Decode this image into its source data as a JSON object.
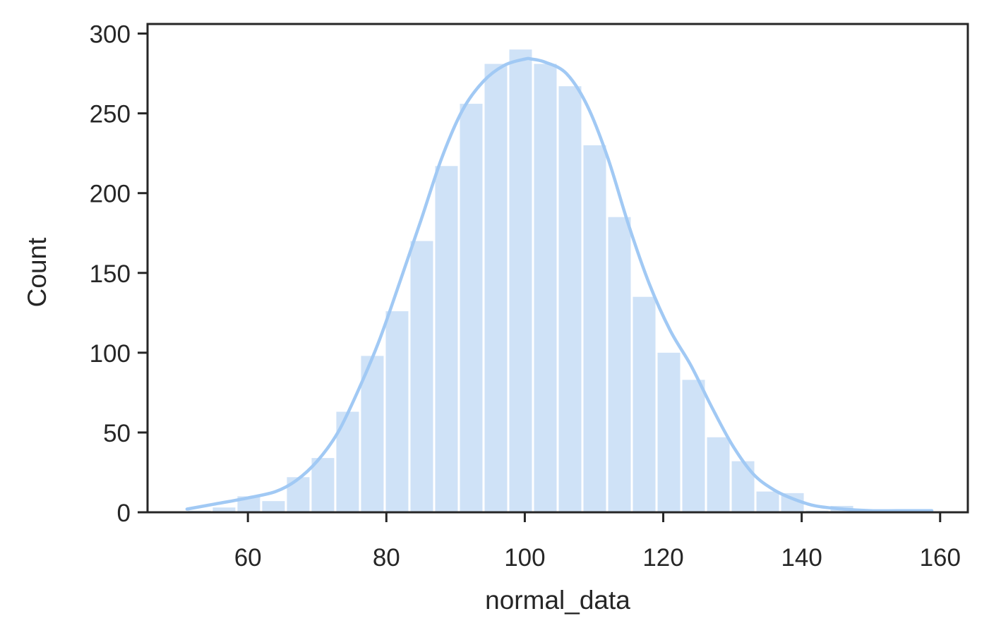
{
  "chart_data": {
    "type": "bar",
    "subtype": "histogram_with_kde",
    "title": "",
    "xlabel": "normal_data",
    "ylabel": "Count",
    "xlim": [
      45.5,
      164
    ],
    "ylim": [
      0,
      306
    ],
    "xticks": [
      60,
      80,
      100,
      120,
      140,
      160
    ],
    "yticks": [
      0,
      50,
      100,
      150,
      200,
      250,
      300
    ],
    "grid": false,
    "legend": null,
    "bar_color": "#cfe2f7",
    "kde_color": "#a1c9f4",
    "axis_color": "#262626",
    "bin_start": 51.2,
    "bin_width": 3.57,
    "categories": [
      "51.2-54.8",
      "54.8-58.3",
      "58.3-61.9",
      "61.9-65.5",
      "65.5-69.1",
      "69.1-72.6",
      "72.6-76.2",
      "76.2-79.8",
      "79.8-83.3",
      "83.3-86.9",
      "86.9-90.5",
      "90.5-94.1",
      "94.1-97.6",
      "97.6-101.2",
      "101.2-104.8",
      "104.8-108.3",
      "108.3-111.9",
      "111.9-115.5",
      "115.5-119.1",
      "119.1-122.6",
      "122.6-126.2",
      "126.2-129.8",
      "129.8-133.3",
      "133.3-136.9",
      "136.9-140.5",
      "140.5-144.1",
      "144.1-147.6",
      "147.6-151.2",
      "151.2-154.8",
      "154.8-158.3"
    ],
    "values": [
      1,
      3,
      10,
      7,
      22,
      34,
      63,
      98,
      126,
      170,
      217,
      256,
      281,
      290,
      281,
      267,
      230,
      185,
      135,
      100,
      83,
      47,
      32,
      13,
      12,
      1,
      4,
      1,
      0,
      1
    ],
    "kde": {
      "x": [
        51.2,
        55,
        60,
        64,
        67,
        70,
        73,
        76,
        79,
        82,
        85,
        88,
        91,
        94,
        97,
        100,
        101,
        103,
        106,
        109,
        112,
        115,
        118,
        121,
        124,
        127,
        130,
        133,
        136,
        139,
        142,
        146,
        150,
        154,
        158.8
      ],
      "y": [
        2,
        5,
        9,
        13,
        20,
        32,
        50,
        77,
        108,
        145,
        183,
        222,
        252,
        270,
        280,
        284,
        284,
        282,
        275,
        255,
        222,
        180,
        143,
        114,
        92,
        66,
        42,
        24,
        14,
        8,
        4,
        2,
        1,
        1,
        1
      ]
    }
  }
}
